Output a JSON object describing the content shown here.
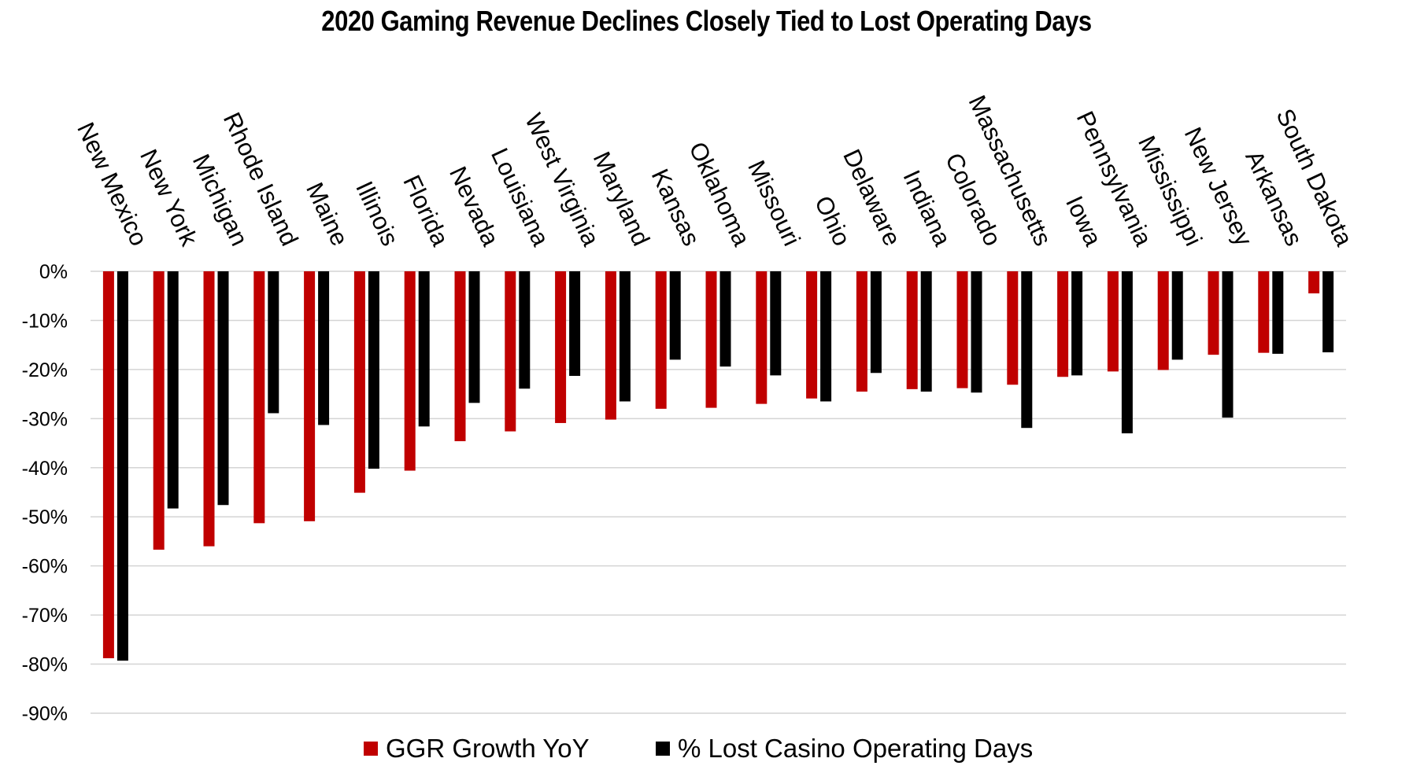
{
  "chart_data": {
    "type": "bar",
    "title": "2020 Gaming Revenue Declines Closely Tied to Lost Operating Days",
    "xlabel": "",
    "ylabel": "",
    "ylim": [
      -90,
      0
    ],
    "yticks": [
      "0%",
      "-10%",
      "-20%",
      "-30%",
      "-40%",
      "-50%",
      "-60%",
      "-70%",
      "-80%",
      "-90%"
    ],
    "grid": true,
    "legend_position": "bottom",
    "categories": [
      "New Mexico",
      "New York",
      "Michigan",
      "Rhode Island",
      "Maine",
      "Illinois",
      "Florida",
      "Nevada",
      "Louisiana",
      "West Virginia",
      "Maryland",
      "Kansas",
      "Oklahoma",
      "Missouri",
      "Ohio",
      "Delaware",
      "Indiana",
      "Colorado",
      "Massachusetts",
      "Iowa",
      "Pennsylvania",
      "Mississippi",
      "New Jersey",
      "Arkansas",
      "South Dakota"
    ],
    "series": [
      {
        "name": "GGR Growth YoY",
        "color": "#c00000",
        "values": [
          -78.8,
          -56.7,
          -56.0,
          -51.3,
          -50.9,
          -45.1,
          -40.6,
          -34.6,
          -32.6,
          -30.9,
          -30.2,
          -28.0,
          -27.8,
          -27.0,
          -25.9,
          -24.5,
          -24.0,
          -23.8,
          -23.1,
          -21.5,
          -20.4,
          -20.1,
          -17.0,
          -16.6,
          -4.5
        ]
      },
      {
        "name": "% Lost Casino Operating Days",
        "color": "#000000",
        "values": [
          -79.3,
          -48.3,
          -47.6,
          -28.9,
          -31.3,
          -40.2,
          -31.6,
          -26.8,
          -23.9,
          -21.3,
          -26.5,
          -18.0,
          -19.4,
          -21.2,
          -26.5,
          -20.7,
          -24.5,
          -24.7,
          -31.9,
          -21.2,
          -33.0,
          -18.0,
          -29.8,
          -16.8,
          -16.5
        ]
      }
    ]
  }
}
